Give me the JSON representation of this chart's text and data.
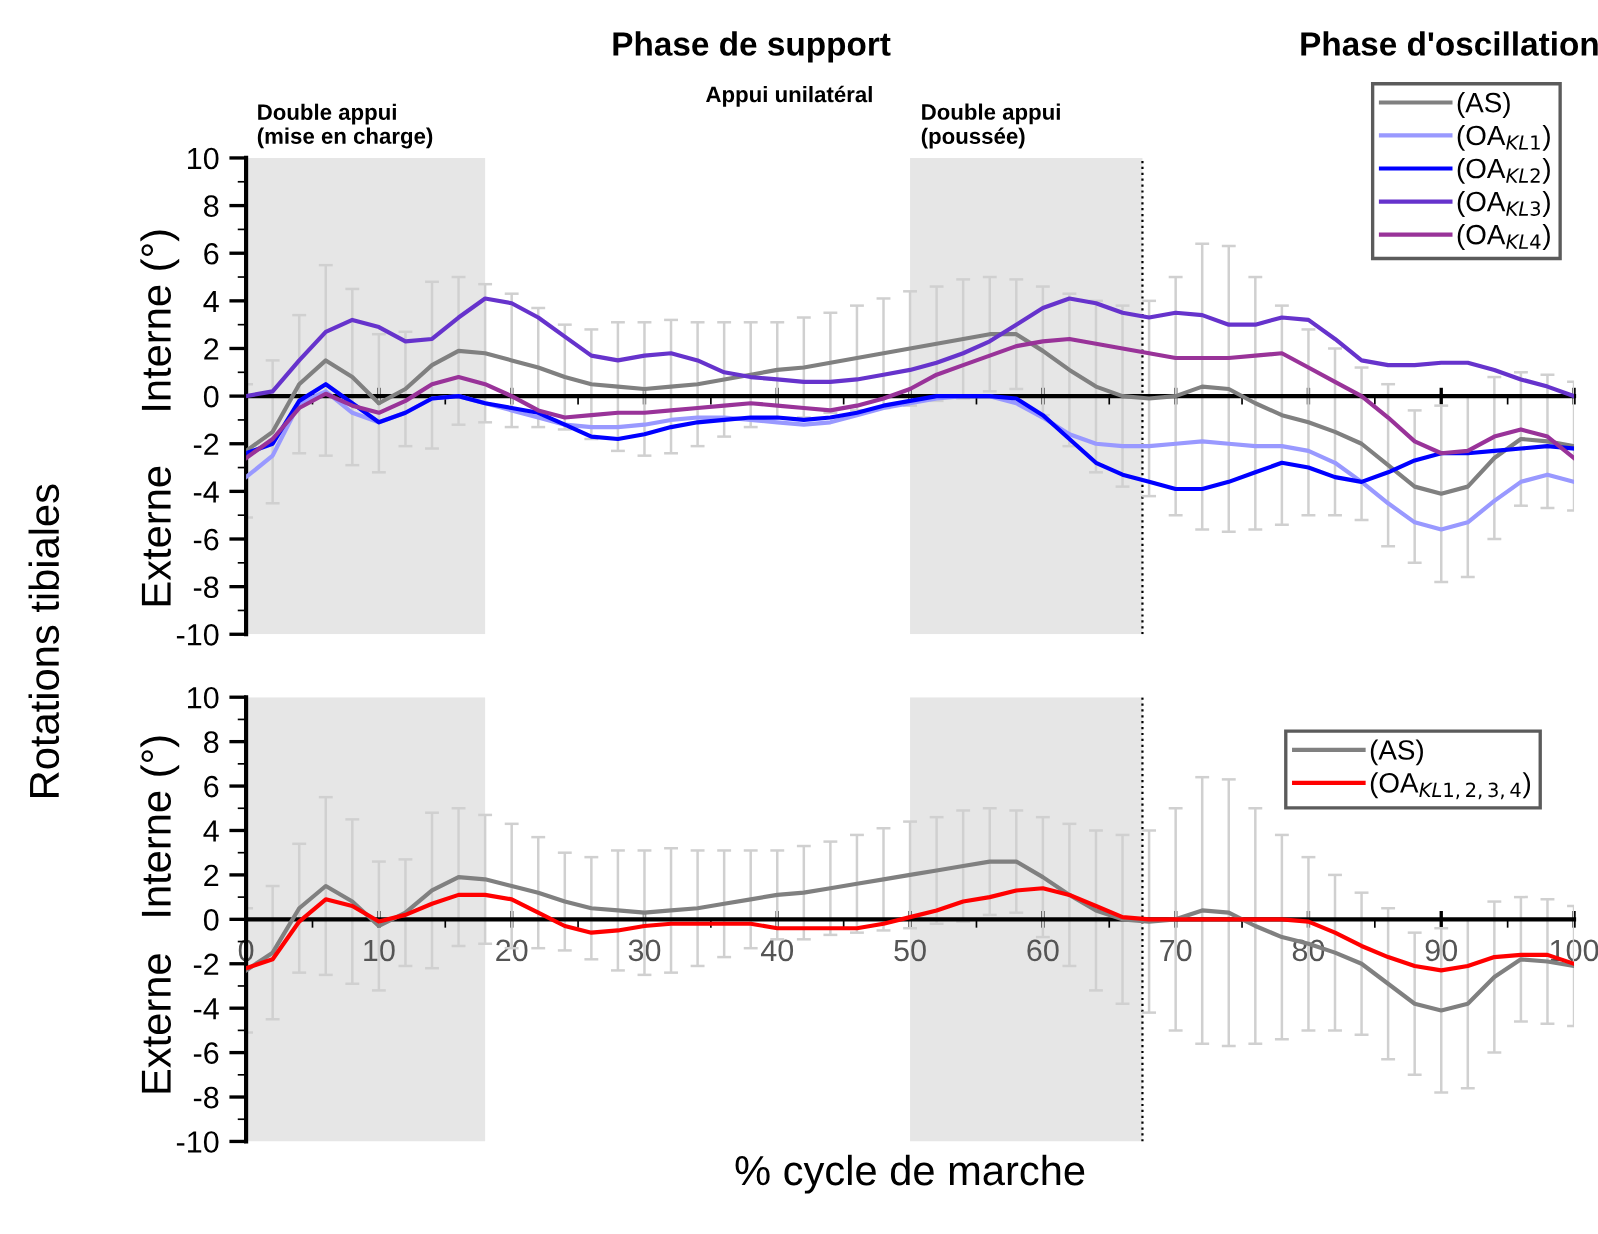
{
  "chart_data": [
    {
      "type": "line",
      "ylabel": "Rotations tibiales",
      "x": [
        0,
        2,
        4,
        6,
        8,
        10,
        12,
        14,
        16,
        18,
        20,
        22,
        24,
        26,
        28,
        30,
        32,
        34,
        36,
        38,
        40,
        42,
        44,
        46,
        48,
        50,
        52,
        54,
        56,
        58,
        60,
        62,
        64,
        66,
        68,
        70,
        72,
        74,
        76,
        78,
        80,
        82,
        84,
        86,
        88,
        90,
        92,
        94,
        96,
        98,
        100
      ],
      "series": [
        {
          "name": "(AS)",
          "color": "#808080",
          "values": [
            -2.3,
            -1.5,
            0.5,
            1.5,
            0.8,
            -0.3,
            0.3,
            1.3,
            1.9,
            1.8,
            1.5,
            1.2,
            0.8,
            0.5,
            0.4,
            0.3,
            0.4,
            0.5,
            0.7,
            0.9,
            1.1,
            1.2,
            1.4,
            1.6,
            1.8,
            2.0,
            2.2,
            2.4,
            2.6,
            2.6,
            1.9,
            1.1,
            0.4,
            0.0,
            -0.1,
            0.0,
            0.4,
            0.3,
            -0.3,
            -0.8,
            -1.1,
            -1.5,
            -2.0,
            -2.9,
            -3.8,
            -4.1,
            -3.8,
            -2.6,
            -1.8,
            -1.9,
            -2.1
          ],
          "errors": [
            2.8,
            3.0,
            2.9,
            4.0,
            3.7,
            2.9,
            2.4,
            3.5,
            3.1,
            2.9,
            2.8,
            2.5,
            2.2,
            2.3,
            2.7,
            2.8,
            2.8,
            2.6,
            2.4,
            2.2,
            2.0,
            2.1,
            2.1,
            2.2,
            2.3,
            2.4,
            2.4,
            2.5,
            2.4,
            2.3,
            2.7,
            3.2,
            3.6,
            3.8,
            4.1,
            5.0,
            6.0,
            6.0,
            5.3,
            4.6,
            3.9,
            3.5,
            3.2,
            3.4,
            3.2,
            3.7,
            3.8,
            3.4,
            2.8,
            2.8,
            2.7
          ]
        },
        {
          "name": "(OA$_{KL1}$)",
          "color": "#9999ff",
          "values": [
            -3.4,
            -2.5,
            -0.3,
            0.2,
            -0.7,
            -1.1,
            -0.7,
            -0.1,
            0.0,
            -0.3,
            -0.6,
            -0.9,
            -1.2,
            -1.3,
            -1.3,
            -1.2,
            -1.0,
            -0.9,
            -0.9,
            -1.0,
            -1.1,
            -1.2,
            -1.1,
            -0.8,
            -0.5,
            -0.3,
            -0.1,
            0.0,
            0.0,
            -0.3,
            -0.9,
            -1.6,
            -2.0,
            -2.1,
            -2.1,
            -2.0,
            -1.9,
            -2.0,
            -2.1,
            -2.1,
            -2.3,
            -2.8,
            -3.6,
            -4.5,
            -5.3,
            -5.6,
            -5.3,
            -4.4,
            -3.6,
            -3.3,
            -3.6
          ]
        },
        {
          "name": "(OA$_{KL2}$)",
          "color": "#0000ff",
          "values": [
            -2.4,
            -2.0,
            -0.2,
            0.5,
            -0.3,
            -1.1,
            -0.7,
            -0.1,
            0.0,
            -0.3,
            -0.5,
            -0.7,
            -1.2,
            -1.7,
            -1.8,
            -1.6,
            -1.3,
            -1.1,
            -1.0,
            -0.9,
            -0.9,
            -1.0,
            -0.9,
            -0.7,
            -0.4,
            -0.2,
            0.0,
            0.0,
            0.0,
            -0.1,
            -0.8,
            -1.8,
            -2.8,
            -3.3,
            -3.6,
            -3.9,
            -3.9,
            -3.6,
            -3.2,
            -2.8,
            -3.0,
            -3.4,
            -3.6,
            -3.2,
            -2.7,
            -2.4,
            -2.4,
            -2.3,
            -2.2,
            -2.1,
            -2.2
          ]
        },
        {
          "name": "(OA$_{KL3}$)",
          "color": "#6633cc",
          "values": [
            0.0,
            0.2,
            1.5,
            2.7,
            3.2,
            2.9,
            2.3,
            2.4,
            3.3,
            4.1,
            3.9,
            3.3,
            2.5,
            1.7,
            1.5,
            1.7,
            1.8,
            1.5,
            1.0,
            0.8,
            0.7,
            0.6,
            0.6,
            0.7,
            0.9,
            1.1,
            1.4,
            1.8,
            2.3,
            3.0,
            3.7,
            4.1,
            3.9,
            3.5,
            3.3,
            3.5,
            3.4,
            3.0,
            3.0,
            3.3,
            3.2,
            2.4,
            1.5,
            1.3,
            1.3,
            1.4,
            1.4,
            1.1,
            0.7,
            0.4,
            0.0
          ]
        },
        {
          "name": "(OA$_{KL4}$)",
          "color": "#993399",
          "values": [
            -2.6,
            -1.8,
            -0.5,
            0.1,
            -0.4,
            -0.7,
            -0.2,
            0.5,
            0.8,
            0.5,
            0.0,
            -0.6,
            -0.9,
            -0.8,
            -0.7,
            -0.7,
            -0.6,
            -0.5,
            -0.4,
            -0.3,
            -0.4,
            -0.5,
            -0.6,
            -0.4,
            -0.1,
            0.3,
            0.9,
            1.3,
            1.7,
            2.1,
            2.3,
            2.4,
            2.2,
            2.0,
            1.8,
            1.6,
            1.6,
            1.6,
            1.7,
            1.8,
            1.2,
            0.6,
            0.0,
            -0.9,
            -1.9,
            -2.4,
            -2.3,
            -1.7,
            -1.4,
            -1.7,
            -2.6
          ]
        }
      ],
      "xlim": [
        0,
        100
      ],
      "xticks": [
        0,
        10,
        20,
        30,
        40,
        50,
        60,
        70,
        80,
        90,
        100
      ],
      "ylim": [
        -10,
        10
      ],
      "yticks": [
        -10,
        -8,
        -6,
        -4,
        -2,
        0,
        2,
        4,
        6,
        8,
        10
      ],
      "tick_labels": "y",
      "legend": "top right",
      "bands": [
        {
          "axis": "x",
          "from": 0,
          "to": 18,
          "label": "Double appui\n(mise en charge)",
          "color": "#e6e6e6"
        },
        {
          "axis": "x",
          "from": 50,
          "to": 67.5,
          "label": "Double appui\n(poussée)",
          "color": "#e6e6e6"
        }
      ],
      "ref_lines": [
        {
          "axis": "x",
          "value": 67.5,
          "color": "#000000",
          "line_style": "dotted"
        }
      ],
      "annotations": [
        "Phase de support",
        "Phase d'oscillation",
        "Appui unilatéral",
        "Interne (°)",
        "Externe"
      ]
    },
    {
      "type": "line",
      "xlabel": "% cycle de marche",
      "x": [
        0,
        2,
        4,
        6,
        8,
        10,
        12,
        14,
        16,
        18,
        20,
        22,
        24,
        26,
        28,
        30,
        32,
        34,
        36,
        38,
        40,
        42,
        44,
        46,
        48,
        50,
        52,
        54,
        56,
        58,
        60,
        62,
        64,
        66,
        68,
        70,
        72,
        74,
        76,
        78,
        80,
        82,
        84,
        86,
        88,
        90,
        92,
        94,
        96,
        98,
        100
      ],
      "series": [
        {
          "name": "(AS)",
          "color": "#808080",
          "values": [
            -2.3,
            -1.5,
            0.5,
            1.5,
            0.8,
            -0.3,
            0.3,
            1.3,
            1.9,
            1.8,
            1.5,
            1.2,
            0.8,
            0.5,
            0.4,
            0.3,
            0.4,
            0.5,
            0.7,
            0.9,
            1.1,
            1.2,
            1.4,
            1.6,
            1.8,
            2.0,
            2.2,
            2.4,
            2.6,
            2.6,
            1.9,
            1.1,
            0.4,
            0.0,
            -0.1,
            0.0,
            0.4,
            0.3,
            -0.3,
            -0.8,
            -1.1,
            -1.5,
            -2.0,
            -2.9,
            -3.8,
            -4.1,
            -3.8,
            -2.6,
            -1.8,
            -1.9,
            -2.1
          ],
          "errors": [
            2.8,
            3.0,
            2.9,
            4.0,
            3.7,
            2.9,
            2.4,
            3.5,
            3.1,
            2.9,
            2.8,
            2.5,
            2.2,
            2.3,
            2.7,
            2.8,
            2.8,
            2.6,
            2.4,
            2.2,
            2.0,
            2.1,
            2.1,
            2.2,
            2.3,
            2.4,
            2.4,
            2.5,
            2.4,
            2.3,
            2.7,
            3.2,
            3.6,
            3.8,
            4.1,
            5.0,
            6.0,
            6.0,
            5.3,
            4.6,
            3.9,
            3.5,
            3.2,
            3.4,
            3.2,
            3.7,
            3.8,
            3.4,
            2.8,
            2.8,
            2.7
          ]
        },
        {
          "name": "(OA$_{KL1,2,3,4}$)",
          "color": "#ff0000",
          "values": [
            -2.2,
            -1.8,
            -0.1,
            0.9,
            0.6,
            -0.1,
            0.2,
            0.7,
            1.1,
            1.1,
            0.9,
            0.3,
            -0.3,
            -0.6,
            -0.5,
            -0.3,
            -0.2,
            -0.2,
            -0.2,
            -0.2,
            -0.4,
            -0.4,
            -0.4,
            -0.4,
            -0.2,
            0.1,
            0.4,
            0.8,
            1.0,
            1.3,
            1.4,
            1.1,
            0.6,
            0.1,
            0.0,
            0.0,
            0.0,
            0.0,
            0.0,
            0.0,
            -0.1,
            -0.6,
            -1.2,
            -1.7,
            -2.1,
            -2.3,
            -2.1,
            -1.7,
            -1.6,
            -1.6,
            -2.0
          ]
        }
      ],
      "xlim": [
        0,
        100
      ],
      "xticks": [
        0,
        10,
        20,
        30,
        40,
        50,
        60,
        70,
        80,
        90,
        100
      ],
      "ylim": [
        -10,
        10
      ],
      "yticks": [
        -10,
        -8,
        -6,
        -4,
        -2,
        0,
        2,
        4,
        6,
        8,
        10
      ],
      "legend": "top right",
      "bands": [
        {
          "axis": "x",
          "from": 0,
          "to": 18,
          "color": "#e6e6e6"
        },
        {
          "axis": "x",
          "from": 50,
          "to": 67.5,
          "color": "#e6e6e6"
        }
      ],
      "ref_lines": [
        {
          "axis": "x",
          "value": 67.5,
          "color": "#000000",
          "line_style": "dotted"
        }
      ],
      "annotations": [
        "Interne (°)",
        "Externe"
      ]
    }
  ]
}
